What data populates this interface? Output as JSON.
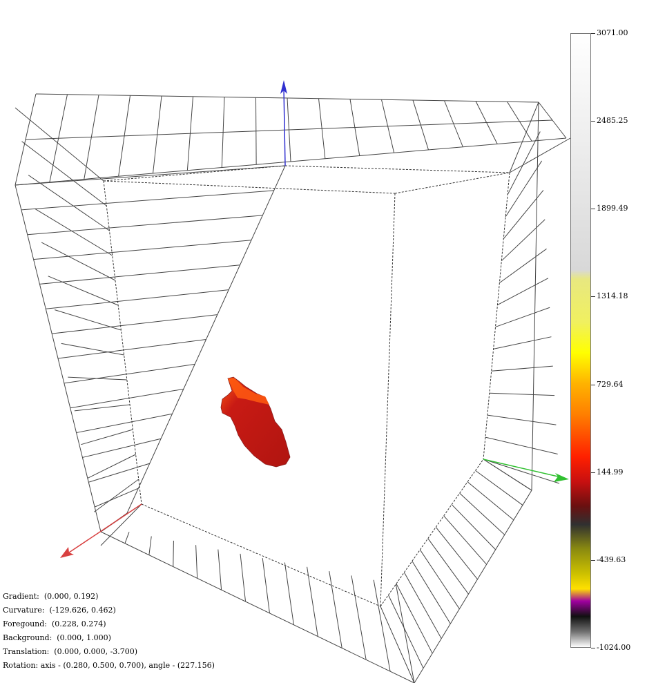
{
  "colorbar": {
    "ticks": [
      "3071.00",
      "2485.25",
      "1899.49",
      "1314.18",
      "729.64",
      "144.99",
      "-439.63",
      "-1024.00"
    ],
    "stops": [
      {
        "offset": 0.0,
        "color": "#ffffff"
      },
      {
        "offset": 0.29,
        "color": "#e2e2e2"
      },
      {
        "offset": 0.385,
        "color": "#d8d8d8"
      },
      {
        "offset": 0.4,
        "color": "#e8e880"
      },
      {
        "offset": 0.47,
        "color": "#f0f060"
      },
      {
        "offset": 0.52,
        "color": "#ffff00"
      },
      {
        "offset": 0.57,
        "color": "#ffb300"
      },
      {
        "offset": 0.62,
        "color": "#ff8000"
      },
      {
        "offset": 0.69,
        "color": "#ff2000"
      },
      {
        "offset": 0.73,
        "color": "#c81010"
      },
      {
        "offset": 0.77,
        "color": "#6a1010"
      },
      {
        "offset": 0.8,
        "color": "#303030"
      },
      {
        "offset": 0.84,
        "color": "#8a8a10"
      },
      {
        "offset": 0.88,
        "color": "#ccc000"
      },
      {
        "offset": 0.905,
        "color": "#ffe000"
      },
      {
        "offset": 0.925,
        "color": "#a000a0"
      },
      {
        "offset": 0.95,
        "color": "#101010"
      },
      {
        "offset": 0.975,
        "color": "#707070"
      },
      {
        "offset": 1.0,
        "color": "#ffffff"
      }
    ]
  },
  "axes": {
    "x_color": "#d84040",
    "y_color": "#30c030",
    "z_color": "#3030d0",
    "grid_color": "#444444"
  },
  "object": {
    "name": "red-volume-blob",
    "main_color": "#c81a14",
    "highlight_color": "#ff5a10"
  },
  "info": {
    "gradient": "Gradient:  (0.000, 0.192)",
    "curvature": "Curvature:  (-129.626, 0.462)",
    "foreground": "Foregound:  (0.228, 0.274)",
    "background": "Background:  (0.000, 1.000)",
    "translation": "Translation:  (0.000, 0.000, -3.700)",
    "rotation": "Rotation: axis - (0.280, 0.500, 0.700), angle - (227.156)"
  }
}
